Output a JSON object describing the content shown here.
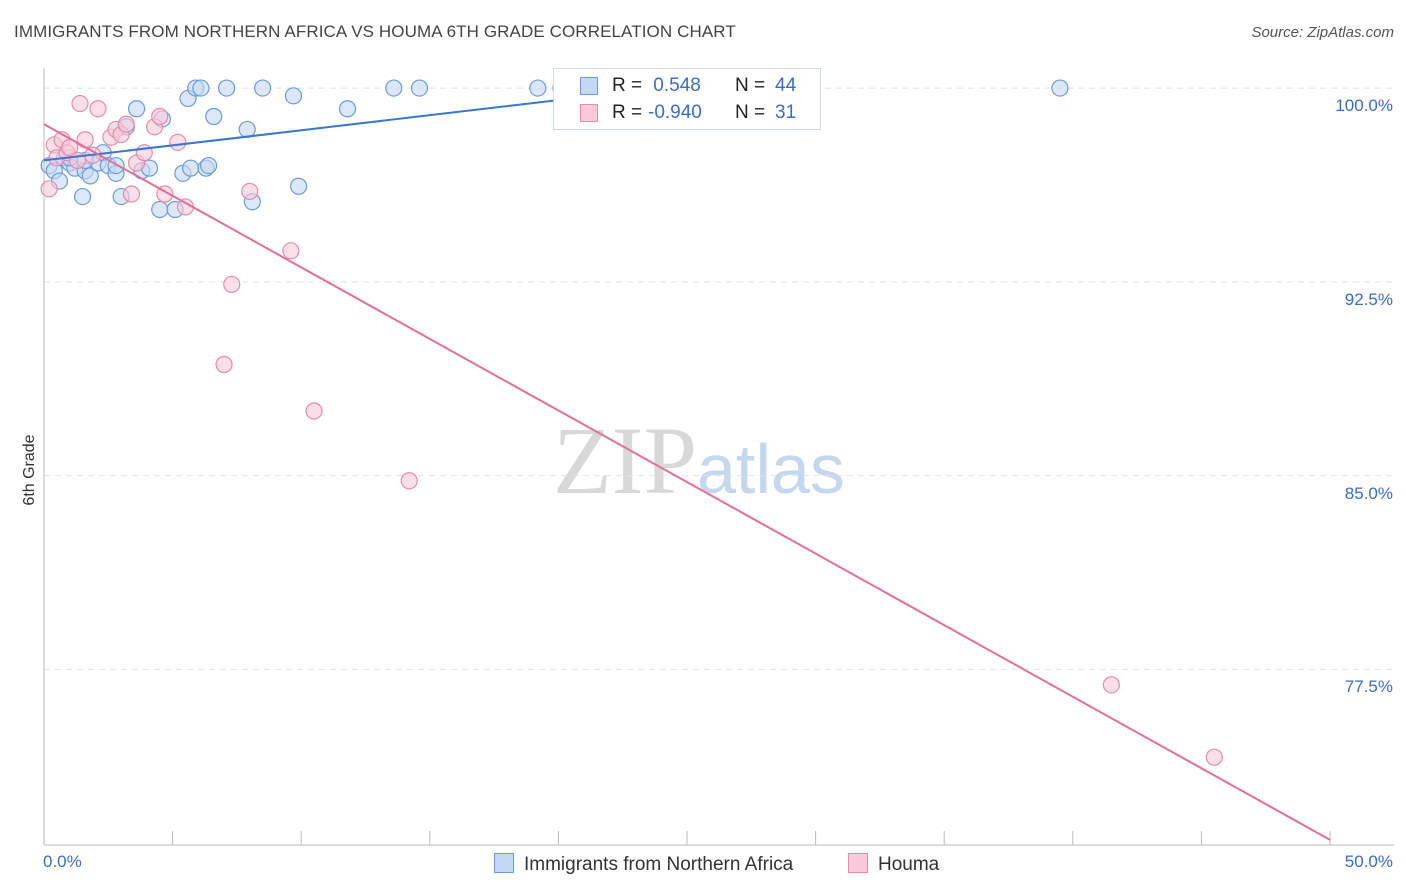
{
  "title": "IMMIGRANTS FROM NORTHERN AFRICA VS HOUMA 6TH GRADE CORRELATION CHART",
  "source": "Source: ZipAtlas.com",
  "watermark": {
    "zip": "ZIP",
    "atlas": "atlas"
  },
  "colors": {
    "blue": "#6a9be0",
    "blue_fill": "#c5d9f5",
    "blue_line": "#3a78d0",
    "pink": "#e88aaa",
    "pink_fill": "#f9cad9",
    "pink_line": "#e0709a",
    "tick_text": "#3b6cc6"
  },
  "legend": {
    "rows": [
      {
        "r_label": "R =",
        "r_value": " 0.548",
        "n_label": "N =",
        "n_value": "44"
      },
      {
        "r_label": "R =",
        "r_value": "-0.940",
        "n_label": "N =",
        "n_value": "31"
      }
    ]
  },
  "bottom_legend": [
    {
      "label": "Immigrants from Northern Africa"
    },
    {
      "label": "Houma"
    }
  ],
  "chart_data": {
    "type": "scatter",
    "title": "IMMIGRANTS FROM NORTHERN AFRICA VS HOUMA 6TH GRADE CORRELATION CHART",
    "xlabel": "",
    "ylabel": "6th Grade",
    "xlim": [
      0,
      50
    ],
    "ylim": [
      70.7,
      100.7
    ],
    "x_tick_labels": [
      "0.0%",
      "50.0%"
    ],
    "y_ticks": [
      {
        "value": 100.0,
        "label": "100.0%"
      },
      {
        "value": 92.5,
        "label": "92.5%"
      },
      {
        "value": 85.0,
        "label": "85.0%"
      },
      {
        "value": 77.5,
        "label": "77.5%"
      }
    ],
    "series": [
      {
        "name": "Immigrants from Northern Africa",
        "r": 0.548,
        "n": 44,
        "trend": {
          "x": [
            0.0,
            24.0
          ],
          "y": [
            97.2,
            100.0
          ]
        },
        "points": [
          [
            0.2,
            97.0
          ],
          [
            0.4,
            96.8
          ],
          [
            0.6,
            96.4
          ],
          [
            0.8,
            97.3
          ],
          [
            1.0,
            97.1
          ],
          [
            1.2,
            96.9
          ],
          [
            1.5,
            95.8
          ],
          [
            1.6,
            96.8
          ],
          [
            1.8,
            96.6
          ],
          [
            2.1,
            97.1
          ],
          [
            2.3,
            97.5
          ],
          [
            2.5,
            97.0
          ],
          [
            2.8,
            96.7
          ],
          [
            3.0,
            95.8
          ],
          [
            3.2,
            98.5
          ],
          [
            3.6,
            99.2
          ],
          [
            3.8,
            96.8
          ],
          [
            4.1,
            96.9
          ],
          [
            4.6,
            98.8
          ],
          [
            4.5,
            95.3
          ],
          [
            5.1,
            95.3
          ],
          [
            5.4,
            96.7
          ],
          [
            5.6,
            99.6
          ],
          [
            5.7,
            96.9
          ],
          [
            5.9,
            100.0
          ],
          [
            6.1,
            100.0
          ],
          [
            6.3,
            96.9
          ],
          [
            6.4,
            97.0
          ],
          [
            6.6,
            98.9
          ],
          [
            7.1,
            100.0
          ],
          [
            7.9,
            98.4
          ],
          [
            8.1,
            95.6
          ],
          [
            8.5,
            100.0
          ],
          [
            9.7,
            99.7
          ],
          [
            9.9,
            96.2
          ],
          [
            11.8,
            99.2
          ],
          [
            13.6,
            100.0
          ],
          [
            14.6,
            100.0
          ],
          [
            19.2,
            100.0
          ],
          [
            20.1,
            100.0
          ],
          [
            39.5,
            100.0
          ],
          [
            1.0,
            97.3
          ],
          [
            2.8,
            97.0
          ],
          [
            1.6,
            97.2
          ]
        ]
      },
      {
        "name": "Houma",
        "r": -0.94,
        "n": 31,
        "trend": {
          "x": [
            0.0,
            50.0
          ],
          "y": [
            98.6,
            70.9
          ]
        },
        "points": [
          [
            0.2,
            96.1
          ],
          [
            0.4,
            97.8
          ],
          [
            0.5,
            97.3
          ],
          [
            0.7,
            98.0
          ],
          [
            0.9,
            97.5
          ],
          [
            1.0,
            97.7
          ],
          [
            1.3,
            97.2
          ],
          [
            1.4,
            99.4
          ],
          [
            1.6,
            98.0
          ],
          [
            1.9,
            97.4
          ],
          [
            2.1,
            99.2
          ],
          [
            2.6,
            98.1
          ],
          [
            2.8,
            98.4
          ],
          [
            3.0,
            98.2
          ],
          [
            3.2,
            98.6
          ],
          [
            3.4,
            95.9
          ],
          [
            3.6,
            97.1
          ],
          [
            3.9,
            97.5
          ],
          [
            4.3,
            98.5
          ],
          [
            4.5,
            98.9
          ],
          [
            4.7,
            95.9
          ],
          [
            5.2,
            97.9
          ],
          [
            5.5,
            95.4
          ],
          [
            7.0,
            89.3
          ],
          [
            7.3,
            92.4
          ],
          [
            8.0,
            96.0
          ],
          [
            9.6,
            93.7
          ],
          [
            10.5,
            87.5
          ],
          [
            14.2,
            84.8
          ],
          [
            41.5,
            76.9
          ],
          [
            45.5,
            74.1
          ]
        ]
      }
    ]
  }
}
